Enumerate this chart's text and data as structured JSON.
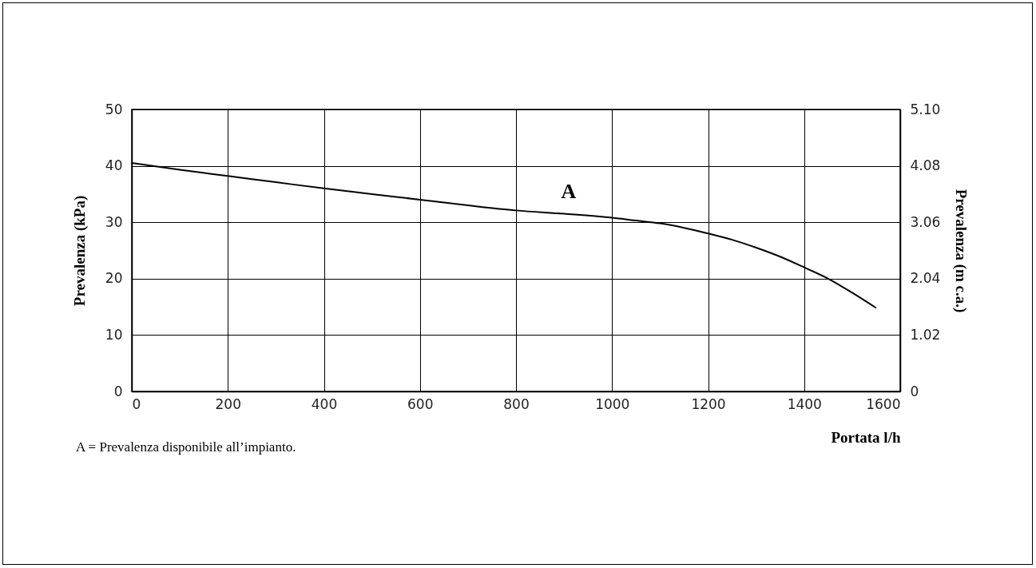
{
  "chart_data": {
    "type": "line",
    "xlabel": "Portata l/h",
    "ylabel": "Prevalenza (kPa)",
    "y2label": "Prevalenza (m c.a.)",
    "x": [
      0,
      100,
      200,
      300,
      400,
      500,
      600,
      700,
      800,
      900,
      1000,
      1050,
      1100,
      1150,
      1200,
      1250,
      1300,
      1350,
      1400,
      1450,
      1500,
      1550
    ],
    "series": [
      {
        "color": "#000000",
        "values": [
          40.5,
          39.3,
          38.2,
          37.1,
          36,
          35,
          34,
          33,
          32.1,
          31.5,
          30.8,
          30.3,
          29.8,
          29,
          28,
          26.9,
          25.5,
          23.9,
          22,
          20,
          17.5,
          14.8
        ]
      }
    ],
    "xlim": [
      0,
      1600
    ],
    "xticks": [
      0,
      200,
      400,
      600,
      800,
      1000,
      1200,
      1400,
      1600
    ],
    "ylim": [
      0,
      50
    ],
    "yticks": [
      0,
      10,
      20,
      30,
      40,
      50
    ],
    "y2lim": [
      0,
      5.1
    ],
    "y2ticks": [
      0,
      1.02,
      2.04,
      3.06,
      4.08,
      {
        "value": 5.1,
        "label": "5.10"
      }
    ],
    "grid": true,
    "legend": false,
    "marker": "none",
    "line_style": "solid",
    "annotations": [
      "A",
      "A  =  Prevalenza disponibile all’impianto."
    ]
  }
}
